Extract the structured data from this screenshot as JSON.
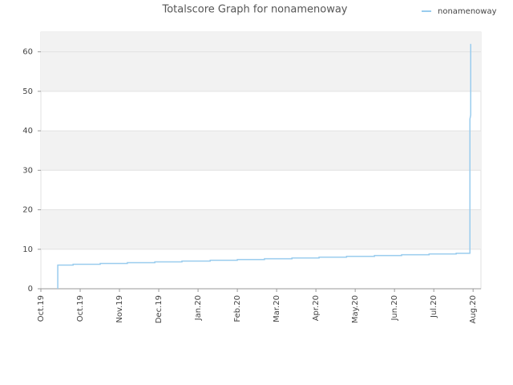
{
  "chart_data": {
    "type": "line",
    "title": "Totalscore Graph for nonamenoway",
    "x": [
      0.43,
      0.43,
      0.82,
      0.82,
      1.51,
      1.51,
      2.2,
      2.2,
      2.9,
      2.9,
      3.59,
      3.59,
      4.31,
      4.31,
      5.0,
      5.0,
      5.69,
      5.69,
      6.39,
      6.39,
      7.08,
      7.08,
      7.78,
      7.78,
      8.49,
      8.49,
      9.18,
      9.18,
      9.88,
      9.88,
      10.57,
      10.57,
      10.92,
      10.92,
      10.94,
      10.94
    ],
    "series": [
      {
        "name": "nonamenoway",
        "color": "#99ccee",
        "values": [
          0,
          6,
          6,
          6.2,
          6.2,
          6.4,
          6.4,
          6.6,
          6.6,
          6.8,
          6.8,
          7.0,
          7.0,
          7.2,
          7.2,
          7.4,
          7.4,
          7.6,
          7.6,
          7.8,
          7.8,
          8.0,
          8.0,
          8.2,
          8.2,
          8.4,
          8.4,
          8.6,
          8.6,
          8.8,
          8.8,
          9.0,
          9.0,
          43,
          44,
          62
        ]
      }
    ],
    "xlim": [
      0,
      11.2
    ],
    "xticks": [
      {
        "value": 0,
        "label": "Oct.19"
      },
      {
        "value": 1,
        "label": "Oct.19"
      },
      {
        "value": 2,
        "label": "Nov.19"
      },
      {
        "value": 3,
        "label": "Dec.19"
      },
      {
        "value": 4,
        "label": "Jan.20"
      },
      {
        "value": 5,
        "label": "Feb.20"
      },
      {
        "value": 6,
        "label": "Mar.20"
      },
      {
        "value": 7,
        "label": "Apr.20"
      },
      {
        "value": 8,
        "label": "May.20"
      },
      {
        "value": 9,
        "label": "Jun.20"
      },
      {
        "value": 10,
        "label": "Jul.20"
      },
      {
        "value": 11,
        "label": "Aug.20"
      }
    ],
    "ylim": [
      0,
      65
    ],
    "yticks": [
      0,
      10,
      20,
      30,
      40,
      50,
      60
    ],
    "grid": true,
    "legend": "top-right"
  }
}
